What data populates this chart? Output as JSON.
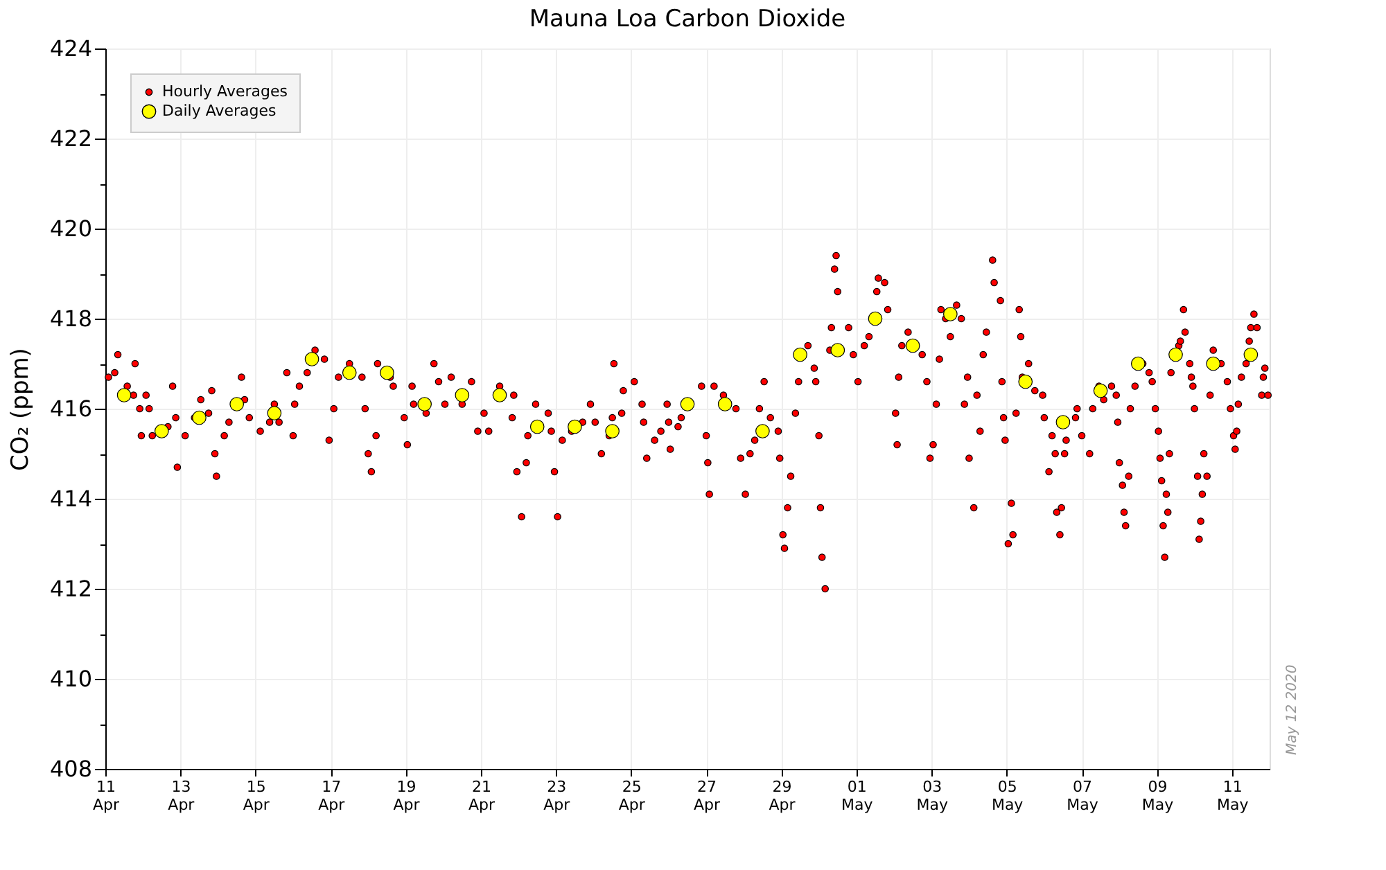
{
  "chart_data": {
    "type": "scatter",
    "title": "Mauna Loa Carbon Dioxide",
    "ylabel": "CO₂ (ppm)",
    "xlim": [
      "2020-04-11",
      "2020-05-12"
    ],
    "ylim": [
      408,
      424
    ],
    "yticks": [
      408,
      {
        "value": 409,
        "label": null
      },
      410,
      {
        "value": 411,
        "label": null
      },
      412,
      {
        "value": 413,
        "label": null
      },
      414,
      {
        "value": 415,
        "label": null
      },
      416,
      {
        "value": 417,
        "label": null
      },
      418,
      {
        "value": 419,
        "label": null
      },
      420,
      {
        "value": 421,
        "label": null
      },
      422,
      {
        "value": 423,
        "label": null
      },
      424
    ],
    "xticks": [
      {
        "value": "2020-04-11",
        "label": "11 Apr"
      },
      {
        "value": "2020-04-13",
        "label": "13 Apr"
      },
      {
        "value": "2020-04-15",
        "label": "15 Apr"
      },
      {
        "value": "2020-04-17",
        "label": "17 Apr"
      },
      {
        "value": "2020-04-19",
        "label": "19 Apr"
      },
      {
        "value": "2020-04-21",
        "label": "21 Apr"
      },
      {
        "value": "2020-04-23",
        "label": "23 Apr"
      },
      {
        "value": "2020-04-25",
        "label": "25 Apr"
      },
      {
        "value": "2020-04-27",
        "label": "27 Apr"
      },
      {
        "value": "2020-04-29",
        "label": "29 Apr"
      },
      {
        "value": "2020-05-01",
        "label": "01 May"
      },
      {
        "value": "2020-05-03",
        "label": "03 May"
      },
      {
        "value": "2020-05-05",
        "label": "05 May"
      },
      {
        "value": "2020-05-07",
        "label": "07 May"
      },
      {
        "value": "2020-05-09",
        "label": "09 May"
      },
      {
        "value": "2020-05-11",
        "label": "11 May"
      }
    ],
    "grid": true,
    "legend": "top left",
    "marker": "circle",
    "annotations": [
      "May 12 2020"
    ],
    "series": [
      {
        "name": "Hourly Averages",
        "color": "#ff0000",
        "x": [
          "2020-04-11T02:00",
          "2020-04-11T08:00",
          "2020-04-11T06:00",
          "2020-04-11T14:00",
          "2020-04-11T18:00",
          "2020-04-11T19:00",
          "2020-04-11T22:00",
          "2020-04-11T23:00",
          "2020-04-12T02:00",
          "2020-04-12T04:00",
          "2020-04-12T06:00",
          "2020-04-12T16:00",
          "2020-04-12T19:00",
          "2020-04-12T21:00",
          "2020-04-12T22:00",
          "2020-04-13T03:00",
          "2020-04-13T09:00",
          "2020-04-13T13:00",
          "2020-04-13T18:00",
          "2020-04-13T20:00",
          "2020-04-13T22:00",
          "2020-04-13T23:00",
          "2020-04-14T04:00",
          "2020-04-14T07:00",
          "2020-04-14T15:00",
          "2020-04-14T17:00",
          "2020-04-14T20:00",
          "2020-04-15T03:00",
          "2020-04-15T09:00",
          "2020-04-15T12:00",
          "2020-04-15T15:00",
          "2020-04-15T20:00",
          "2020-04-16T00:00",
          "2020-04-16T01:00",
          "2020-04-16T04:00",
          "2020-04-16T09:00",
          "2020-04-16T14:00",
          "2020-04-16T20:00",
          "2020-04-16T23:00",
          "2020-04-17T02:00",
          "2020-04-17T05:00",
          "2020-04-17T12:00",
          "2020-04-17T20:00",
          "2020-04-17T22:00",
          "2020-04-18T00:00",
          "2020-04-18T02:00",
          "2020-04-18T05:00",
          "2020-04-18T06:00",
          "2020-04-18T14:00",
          "2020-04-18T16:00",
          "2020-04-18T23:00",
          "2020-04-19T01:00",
          "2020-04-19T04:00",
          "2020-04-19T05:00",
          "2020-04-19T13:00",
          "2020-04-19T18:00",
          "2020-04-19T21:00",
          "2020-04-20T01:00",
          "2020-04-20T05:00",
          "2020-04-20T12:00",
          "2020-04-20T18:00",
          "2020-04-20T22:00",
          "2020-04-21T02:00",
          "2020-04-21T05:00",
          "2020-04-21T12:00",
          "2020-04-21T20:00",
          "2020-04-21T21:00",
          "2020-04-21T23:00",
          "2020-04-22T02:00",
          "2020-04-22T05:00",
          "2020-04-22T06:00",
          "2020-04-22T11:00",
          "2020-04-22T19:00",
          "2020-04-22T21:00",
          "2020-04-22T23:00",
          "2020-04-23T01:00",
          "2020-04-23T04:00",
          "2020-04-23T10:00",
          "2020-04-23T17:00",
          "2020-04-23T22:00",
          "2020-04-24T01:00",
          "2020-04-24T05:00",
          "2020-04-24T10:00",
          "2020-04-24T12:00",
          "2020-04-24T13:00",
          "2020-04-24T18:00",
          "2020-04-24T19:00",
          "2020-04-25T02:00",
          "2020-04-25T07:00",
          "2020-04-25T08:00",
          "2020-04-25T10:00",
          "2020-04-25T15:00",
          "2020-04-25T19:00",
          "2020-04-25T23:00",
          "2020-04-26T00:00",
          "2020-04-26T01:00",
          "2020-04-26T06:00",
          "2020-04-26T08:00",
          "2020-04-26T21:00",
          "2020-04-27T00:00",
          "2020-04-27T01:00",
          "2020-04-27T02:00",
          "2020-04-27T05:00",
          "2020-04-27T11:00",
          "2020-04-27T19:00",
          "2020-04-27T22:00",
          "2020-04-28T01:00",
          "2020-04-28T04:00",
          "2020-04-28T07:00",
          "2020-04-28T10:00",
          "2020-04-28T13:00",
          "2020-04-28T17:00",
          "2020-04-28T22:00",
          "2020-04-28T23:00",
          "2020-04-29T01:00",
          "2020-04-29T02:00",
          "2020-04-29T04:00",
          "2020-04-29T06:00",
          "2020-04-29T09:00",
          "2020-04-29T11:00",
          "2020-04-29T17:00",
          "2020-04-29T21:00",
          "2020-04-29T22:00",
          "2020-04-30T00:00",
          "2020-04-30T01:00",
          "2020-04-30T02:00",
          "2020-04-30T04:00",
          "2020-04-30T07:00",
          "2020-04-30T08:00",
          "2020-04-30T10:00",
          "2020-04-30T11:00",
          "2020-04-30T12:00",
          "2020-04-30T19:00",
          "2020-04-30T22:00",
          "2020-05-01T01:00",
          "2020-05-01T05:00",
          "2020-05-01T08:00",
          "2020-05-01T13:00",
          "2020-05-01T14:00",
          "2020-05-01T18:00",
          "2020-05-01T20:00",
          "2020-05-02T01:00",
          "2020-05-02T02:00",
          "2020-05-02T03:00",
          "2020-05-02T05:00",
          "2020-05-02T09:00",
          "2020-05-02T18:00",
          "2020-05-02T21:00",
          "2020-05-02T23:00",
          "2020-05-03T01:00",
          "2020-05-03T03:00",
          "2020-05-03T05:00",
          "2020-05-03T06:00",
          "2020-05-03T09:00",
          "2020-05-03T12:00",
          "2020-05-03T16:00",
          "2020-05-03T19:00",
          "2020-05-03T21:00",
          "2020-05-03T23:00",
          "2020-05-04T00:00",
          "2020-05-04T03:00",
          "2020-05-04T05:00",
          "2020-05-04T07:00",
          "2020-05-04T09:00",
          "2020-05-04T11:00",
          "2020-05-04T15:00",
          "2020-05-04T16:00",
          "2020-05-04T20:00",
          "2020-05-04T21:00",
          "2020-05-04T22:00",
          "2020-05-04T23:00",
          "2020-05-05T01:00",
          "2020-05-05T03:00",
          "2020-05-05T04:00",
          "2020-05-05T06:00",
          "2020-05-05T08:00",
          "2020-05-05T09:00",
          "2020-05-05T10:00",
          "2020-05-05T14:00",
          "2020-05-05T18:00",
          "2020-05-05T23:00",
          "2020-05-06T00:00",
          "2020-05-06T03:00",
          "2020-05-06T05:00",
          "2020-05-06T07:00",
          "2020-05-06T08:00",
          "2020-05-06T10:00",
          "2020-05-06T11:00",
          "2020-05-06T13:00",
          "2020-05-06T14:00",
          "2020-05-06T20:00",
          "2020-05-06T21:00",
          "2020-05-07T00:00",
          "2020-05-07T05:00",
          "2020-05-07T07:00",
          "2020-05-07T11:00",
          "2020-05-07T14:00",
          "2020-05-07T19:00",
          "2020-05-07T22:00",
          "2020-05-07T23:00",
          "2020-05-08T00:00",
          "2020-05-08T02:00",
          "2020-05-08T03:00",
          "2020-05-08T04:00",
          "2020-05-08T06:00",
          "2020-05-08T07:00",
          "2020-05-08T10:00",
          "2020-05-08T15:00",
          "2020-05-08T19:00",
          "2020-05-08T21:00",
          "2020-05-08T23:00",
          "2020-05-09T01:00",
          "2020-05-09T02:00",
          "2020-05-09T03:00",
          "2020-05-09T04:00",
          "2020-05-09T05:00",
          "2020-05-09T06:00",
          "2020-05-09T07:00",
          "2020-05-09T08:00",
          "2020-05-09T09:00",
          "2020-05-09T14:00",
          "2020-05-09T15:00",
          "2020-05-09T17:00",
          "2020-05-09T18:00",
          "2020-05-09T21:00",
          "2020-05-09T22:00",
          "2020-05-09T23:00",
          "2020-05-10T00:00",
          "2020-05-10T02:00",
          "2020-05-10T03:00",
          "2020-05-10T04:00",
          "2020-05-10T05:00",
          "2020-05-10T06:00",
          "2020-05-10T08:00",
          "2020-05-10T10:00",
          "2020-05-10T12:00",
          "2020-05-10T17:00",
          "2020-05-10T21:00",
          "2020-05-10T23:00",
          "2020-05-11T01:00",
          "2020-05-11T02:00",
          "2020-05-11T03:00",
          "2020-05-11T04:00",
          "2020-05-11T06:00",
          "2020-05-11T09:00",
          "2020-05-11T11:00",
          "2020-05-11T12:00",
          "2020-05-11T14:00",
          "2020-05-11T16:00",
          "2020-05-11T19:00",
          "2020-05-11T20:00",
          "2020-05-11T21:00",
          "2020-05-11T23:00"
        ],
        "values": [
          416.7,
          417.2,
          416.8,
          416.5,
          416.3,
          417.0,
          416.0,
          415.4,
          416.3,
          416.0,
          415.4,
          415.6,
          416.5,
          415.8,
          414.7,
          415.4,
          415.8,
          416.2,
          415.9,
          416.4,
          415.0,
          414.5,
          415.4,
          415.7,
          416.7,
          416.2,
          415.8,
          415.5,
          415.7,
          416.1,
          415.7,
          416.8,
          415.4,
          416.1,
          416.5,
          416.8,
          417.3,
          417.1,
          415.3,
          416.0,
          416.7,
          417.0,
          416.7,
          416.0,
          415.0,
          414.6,
          415.4,
          417.0,
          416.7,
          416.5,
          415.8,
          415.2,
          416.5,
          416.1,
          415.9,
          417.0,
          416.6,
          416.1,
          416.7,
          416.1,
          416.6,
          415.5,
          415.9,
          415.5,
          416.5,
          415.8,
          416.3,
          414.6,
          413.6,
          414.8,
          415.4,
          416.1,
          415.9,
          415.5,
          414.6,
          413.6,
          415.3,
          415.5,
          415.7,
          416.1,
          415.7,
          415.0,
          415.4,
          415.8,
          417.0,
          415.9,
          416.4,
          416.6,
          416.1,
          415.7,
          414.9,
          415.3,
          415.5,
          416.1,
          415.7,
          415.1,
          415.6,
          415.8,
          416.5,
          415.4,
          414.8,
          414.1,
          416.5,
          416.3,
          416.0,
          414.9,
          414.1,
          415.0,
          415.3,
          416.0,
          416.6,
          415.8,
          415.5,
          414.9,
          413.2,
          412.9,
          413.8,
          414.5,
          415.9,
          416.6,
          417.4,
          416.9,
          416.6,
          415.4,
          413.8,
          412.7,
          412.0,
          417.3,
          417.8,
          419.1,
          419.4,
          418.6,
          417.8,
          417.2,
          416.6,
          417.4,
          417.6,
          418.6,
          418.9,
          418.8,
          418.2,
          415.9,
          415.2,
          416.7,
          417.4,
          417.7,
          417.2,
          416.6,
          414.9,
          415.2,
          416.1,
          417.1,
          418.2,
          418.0,
          417.6,
          418.3,
          418.0,
          416.1,
          416.7,
          414.9,
          413.8,
          416.3,
          415.5,
          417.2,
          417.7,
          419.3,
          418.8,
          418.4,
          416.6,
          415.8,
          415.3,
          413.0,
          413.9,
          413.2,
          415.9,
          418.2,
          417.6,
          416.7,
          417.0,
          416.4,
          416.3,
          415.8,
          414.6,
          415.4,
          415.0,
          413.7,
          413.2,
          413.8,
          415.0,
          415.3,
          415.8,
          416.0,
          415.4,
          415.0,
          416.0,
          416.5,
          416.2,
          416.5,
          416.3,
          415.7,
          414.8,
          414.3,
          413.7,
          413.4,
          414.5,
          416.0,
          416.5,
          417.0,
          416.8,
          416.6,
          416.0,
          415.5,
          414.9,
          414.4,
          413.4,
          412.7,
          414.1,
          413.7,
          415.0,
          416.8,
          417.4,
          417.5,
          418.2,
          417.7,
          417.0,
          416.7,
          416.5,
          416.0,
          414.5,
          413.1,
          413.5,
          414.1,
          415.0,
          414.5,
          416.3,
          417.3,
          417.0,
          416.6,
          416.0,
          415.4,
          415.1,
          415.5,
          416.1,
          416.7,
          417.0,
          417.5,
          417.8,
          418.1,
          417.8,
          416.3,
          416.7,
          416.9,
          416.3
        ]
      },
      {
        "name": "Daily Averages",
        "color": "#ffff00",
        "x": [
          "2020-04-11T12:00",
          "2020-04-12T12:00",
          "2020-04-13T12:00",
          "2020-04-14T12:00",
          "2020-04-15T12:00",
          "2020-04-16T12:00",
          "2020-04-17T12:00",
          "2020-04-18T12:00",
          "2020-04-19T12:00",
          "2020-04-20T12:00",
          "2020-04-21T12:00",
          "2020-04-22T12:00",
          "2020-04-23T12:00",
          "2020-04-24T12:00",
          "2020-04-26T12:00",
          "2020-04-27T12:00",
          "2020-04-28T12:00",
          "2020-04-29T12:00",
          "2020-04-30T12:00",
          "2020-05-01T12:00",
          "2020-05-02T12:00",
          "2020-05-03T12:00",
          "2020-05-05T12:00",
          "2020-05-06T12:00",
          "2020-05-07T12:00",
          "2020-05-08T12:00",
          "2020-05-09T12:00",
          "2020-05-10T12:00",
          "2020-05-11T12:00"
        ],
        "values": [
          416.3,
          415.5,
          415.8,
          416.1,
          415.9,
          417.1,
          416.8,
          416.8,
          416.1,
          416.3,
          416.3,
          415.6,
          415.6,
          415.5,
          416.1,
          416.1,
          415.5,
          417.2,
          417.3,
          418.0,
          417.4,
          418.1,
          416.6,
          415.7,
          416.4,
          417.0,
          417.2,
          417.0,
          417.2
        ]
      }
    ]
  }
}
